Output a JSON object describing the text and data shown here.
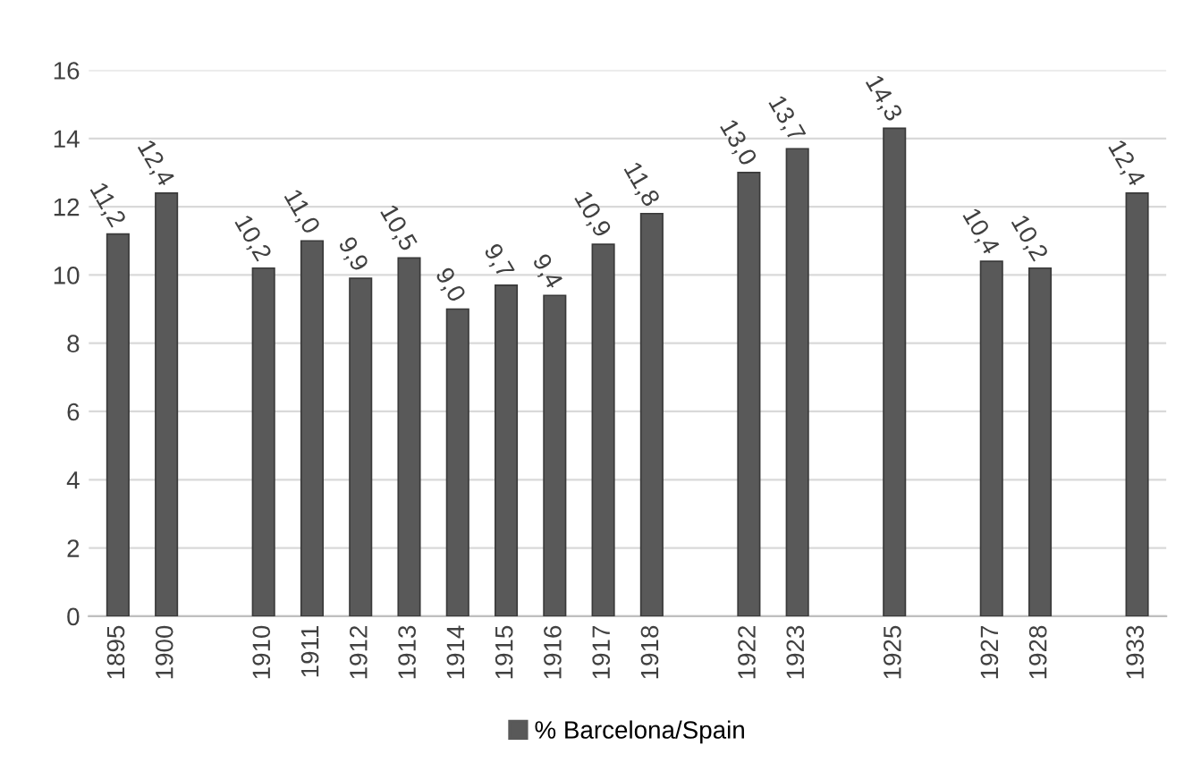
{
  "chart_data": {
    "type": "bar",
    "categories": [
      "1895",
      "1900",
      null,
      "1910",
      "1911",
      "1912",
      "1913",
      "1914",
      "1915",
      "1916",
      "1917",
      "1918",
      null,
      "1922",
      "1923",
      null,
      "1925",
      null,
      "1927",
      "1928",
      null,
      "1933"
    ],
    "series": [
      {
        "name": "% Barcelona/Spain",
        "color": "#595959",
        "values": [
          11.2,
          12.4,
          null,
          10.2,
          11.0,
          9.9,
          10.5,
          9.0,
          9.7,
          9.4,
          10.9,
          11.8,
          null,
          13.0,
          13.7,
          null,
          14.3,
          null,
          10.4,
          10.2,
          null,
          12.4
        ],
        "value_labels": [
          "11,2",
          "12,4",
          null,
          "10,2",
          "11,0",
          "9,9",
          "10,5",
          "9,0",
          "9,7",
          "9,4",
          "10,9",
          "11,8",
          null,
          "13,0",
          "13,7",
          null,
          "14,3",
          null,
          "10,4",
          "10,2",
          null,
          "12,4"
        ]
      }
    ],
    "ylim": [
      0,
      16
    ],
    "yticks": [
      0,
      2,
      4,
      6,
      8,
      10,
      12,
      14,
      16
    ],
    "grid": "y",
    "legend": "bottom"
  }
}
